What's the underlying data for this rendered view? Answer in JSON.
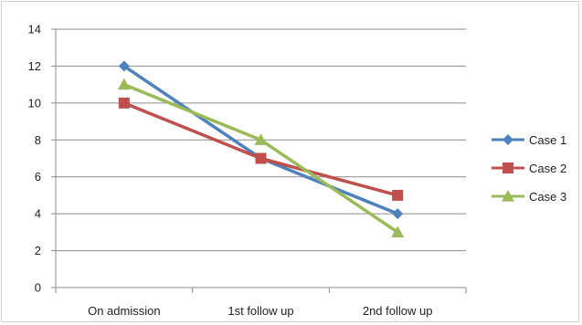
{
  "chart_data": {
    "type": "line",
    "title": "",
    "xlabel": "",
    "ylabel": "",
    "categories": [
      "On admission",
      "1st follow up",
      "2nd follow up"
    ],
    "ylim": [
      0,
      14
    ],
    "yticks": [
      0,
      2,
      4,
      6,
      8,
      10,
      12,
      14
    ],
    "grid": true,
    "legend_position": "right",
    "series": [
      {
        "name": "Case 1",
        "values": [
          12,
          7,
          4
        ],
        "color": "#4f81bd",
        "marker": "diamond"
      },
      {
        "name": "Case 2",
        "values": [
          10,
          7,
          5
        ],
        "color": "#c0504d",
        "marker": "square"
      },
      {
        "name": "Case 3",
        "values": [
          11,
          8,
          3
        ],
        "color": "#9bbb59",
        "marker": "triangle"
      }
    ]
  }
}
